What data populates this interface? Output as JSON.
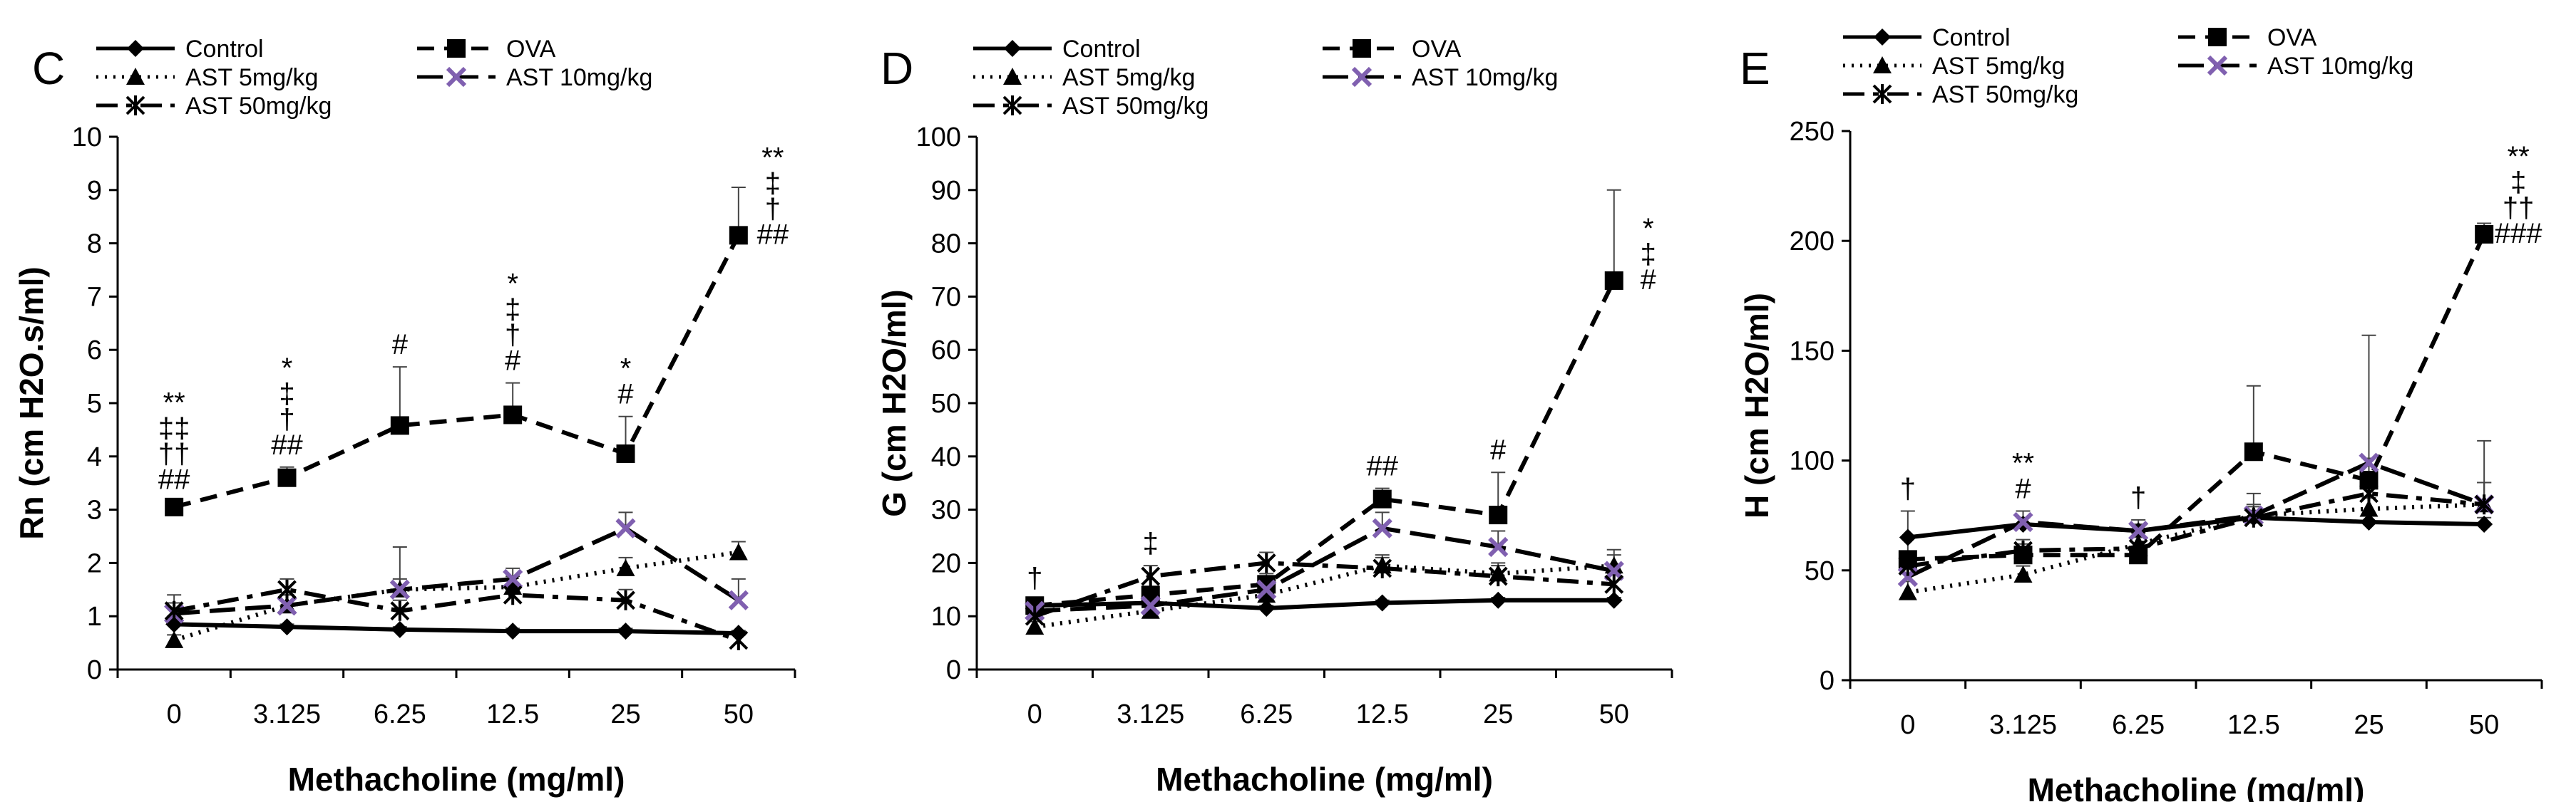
{
  "chart_data": [
    {
      "panel_label": "C",
      "type": "line",
      "x": [
        "0",
        "3.125",
        "6.25",
        "12.5",
        "25",
        "50"
      ],
      "xlabel": "Methacholine (mg/ml)",
      "ylabel": "Rn (cm H2O.s/ml)",
      "ylim": [
        0,
        10
      ],
      "yticks": [
        "0",
        "1",
        "2",
        "3",
        "4",
        "5",
        "6",
        "7",
        "8",
        "9",
        "10"
      ],
      "legend_position": "top",
      "series": [
        {
          "name": "Control",
          "values": [
            0.85,
            0.8,
            0.75,
            0.72,
            0.72,
            0.68
          ],
          "errors": [
            0.15,
            0.05,
            0.05,
            0.05,
            0.05,
            0.05
          ]
        },
        {
          "name": "OVA",
          "values": [
            3.05,
            3.6,
            4.58,
            4.78,
            4.05,
            8.15
          ],
          "errors": [
            0.1,
            0.2,
            1.1,
            0.6,
            0.7,
            0.9
          ]
        },
        {
          "name": "AST 5mg/kg",
          "values": [
            0.55,
            1.2,
            1.5,
            1.55,
            1.9,
            2.2
          ],
          "errors": [
            0.1,
            0.2,
            0.2,
            0.2,
            0.2,
            0.2
          ]
        },
        {
          "name": "AST 10mg/kg",
          "values": [
            1.05,
            1.2,
            1.5,
            1.7,
            2.65,
            1.3
          ],
          "errors": [
            0.2,
            0.2,
            0.8,
            0.2,
            0.3,
            0.4
          ]
        },
        {
          "name": "AST 50mg/kg",
          "values": [
            1.1,
            1.5,
            1.1,
            1.4,
            1.3,
            0.55
          ],
          "errors": [
            0.3,
            0.2,
            0.2,
            0.2,
            0.2,
            0.1
          ]
        }
      ],
      "annotations": [
        {
          "x_index": 0,
          "lines": [
            "**",
            "‡‡",
            "††",
            "##"
          ]
        },
        {
          "x_index": 1,
          "lines": [
            "*",
            "‡",
            "†",
            "##"
          ]
        },
        {
          "x_index": 2,
          "lines": [
            "#"
          ]
        },
        {
          "x_index": 3,
          "lines": [
            "*",
            "‡",
            "†",
            "#"
          ]
        },
        {
          "x_index": 4,
          "lines": [
            "*",
            "#"
          ]
        },
        {
          "x_index": 5,
          "lines": [
            "**",
            "‡",
            "†",
            "##"
          ]
        }
      ]
    },
    {
      "panel_label": "D",
      "type": "line",
      "x": [
        "0",
        "3.125",
        "6.25",
        "12.5",
        "25",
        "50"
      ],
      "xlabel": "Methacholine (mg/ml)",
      "ylabel": "G (cm H2O/ml)",
      "ylim": [
        0,
        100
      ],
      "yticks": [
        "0",
        "10",
        "20",
        "30",
        "40",
        "50",
        "60",
        "70",
        "80",
        "90",
        "100"
      ],
      "legend_position": "top",
      "series": [
        {
          "name": "Control",
          "values": [
            12,
            12.5,
            11.5,
            12.5,
            13,
            13
          ],
          "errors": [
            0.5,
            0.5,
            0.5,
            0.5,
            0.5,
            0.5
          ]
        },
        {
          "name": "OVA",
          "values": [
            12,
            14,
            16,
            32,
            29,
            73
          ],
          "errors": [
            1,
            1,
            2,
            2,
            8,
            17
          ]
        },
        {
          "name": "AST 5mg/kg",
          "values": [
            8,
            11,
            14,
            19.5,
            18,
            19.5
          ],
          "errors": [
            1,
            1,
            2,
            2,
            2,
            3
          ]
        },
        {
          "name": "AST 10mg/kg",
          "values": [
            11,
            12,
            15,
            26.5,
            23,
            18.5
          ],
          "errors": [
            1,
            1,
            2,
            3,
            3,
            3
          ]
        },
        {
          "name": "AST 50mg/kg",
          "values": [
            10,
            17.5,
            20,
            19,
            17.5,
            16
          ],
          "errors": [
            1,
            2,
            2,
            2,
            2,
            2
          ]
        }
      ],
      "annotations": [
        {
          "x_index": 0,
          "lines": [
            "†"
          ]
        },
        {
          "x_index": 1,
          "lines": [
            "‡"
          ]
        },
        {
          "x_index": 3,
          "lines": [
            "##"
          ]
        },
        {
          "x_index": 4,
          "lines": [
            "#"
          ]
        },
        {
          "x_index": 5,
          "lines": [
            "*",
            "‡",
            "#"
          ]
        }
      ]
    },
    {
      "panel_label": "E",
      "type": "line",
      "x": [
        "0",
        "3.125",
        "6.25",
        "12.5",
        "25",
        "50"
      ],
      "xlabel": "Methacholine (mg/ml)",
      "ylabel": "H (cm H2O/ml)",
      "ylim": [
        0,
        250
      ],
      "yticks": [
        "0",
        "50",
        "100",
        "150",
        "200",
        "250"
      ],
      "legend_position": "top",
      "series": [
        {
          "name": "Control",
          "values": [
            65,
            71,
            68,
            74,
            72,
            71
          ],
          "errors": [
            12,
            3,
            3,
            3,
            3,
            3
          ]
        },
        {
          "name": "OVA",
          "values": [
            55,
            57,
            57,
            104,
            91,
            203
          ],
          "errors": [
            10,
            5,
            4,
            30,
            10,
            5
          ]
        },
        {
          "name": "AST 5mg/kg",
          "values": [
            40,
            48,
            62,
            75,
            78,
            80
          ],
          "errors": [
            5,
            4,
            5,
            5,
            5,
            10
          ]
        },
        {
          "name": "AST 10mg/kg",
          "values": [
            47,
            72,
            68,
            75,
            99,
            80
          ],
          "errors": [
            5,
            5,
            5,
            10,
            58,
            29
          ]
        },
        {
          "name": "AST 50mg/kg",
          "values": [
            52,
            59,
            60,
            74,
            85,
            80
          ],
          "errors": [
            5,
            5,
            5,
            5,
            10,
            10
          ]
        }
      ],
      "annotations": [
        {
          "x_index": 0,
          "lines": [
            "†"
          ]
        },
        {
          "x_index": 1,
          "lines": [
            "**",
            "#"
          ]
        },
        {
          "x_index": 2,
          "lines": [
            "†"
          ]
        },
        {
          "x_index": 5,
          "lines": [
            "**",
            "‡",
            "††",
            "###"
          ]
        }
      ]
    }
  ]
}
